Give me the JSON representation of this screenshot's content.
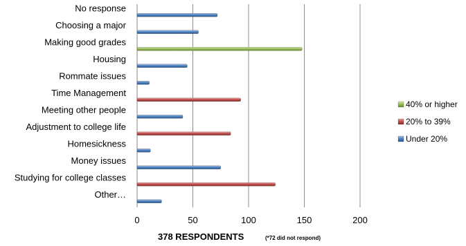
{
  "chart_data": {
    "type": "bar",
    "orientation": "horizontal",
    "categories": [
      "No response",
      "Choosing a major",
      "Making good grades",
      "Housing",
      "Rommate issues",
      "Time Management",
      "Meeting other people",
      "Adjustment to college life",
      "Homesickness",
      "Money issues",
      "Studying for college classes",
      "Other…"
    ],
    "values": [
      72,
      55,
      148,
      45,
      11,
      93,
      41,
      84,
      12,
      75,
      124,
      22
    ],
    "groups": [
      "under",
      "under",
      "high",
      "under",
      "under",
      "mid",
      "under",
      "mid",
      "under",
      "under",
      "mid",
      "under"
    ],
    "xlim": [
      0,
      200
    ],
    "xticks": [
      "0",
      "50",
      "100",
      "150",
      "200"
    ],
    "xlabel": "378 RESPONDENTS",
    "xlabel_note": "(*72 did not respond)",
    "ylabel": "",
    "grid": "vertical",
    "legend_position": "right",
    "legend": [
      {
        "key": "high",
        "label": "40% or higher",
        "color": "#9bbb59"
      },
      {
        "key": "mid",
        "label": "20% to 39%",
        "color": "#c0504d"
      },
      {
        "key": "under",
        "label": "Under 20%",
        "color": "#4f81bd"
      }
    ]
  }
}
